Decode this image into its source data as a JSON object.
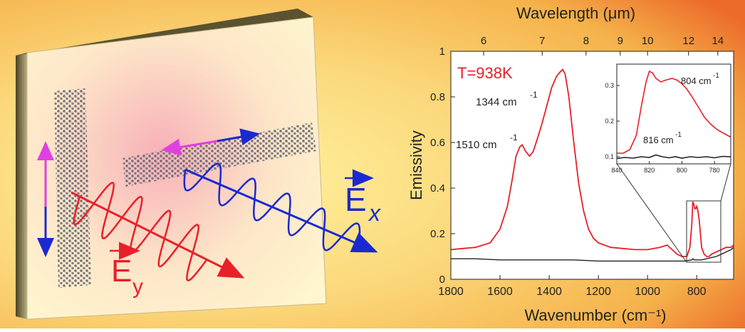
{
  "illustration": {
    "ex_label": "E",
    "ex_sub": "x",
    "ey_label": "E",
    "ey_sub": "y",
    "colors": {
      "red": "#e8202a",
      "blue": "#1a2ad0",
      "magenta": "#e040e0"
    }
  },
  "chart_data": [
    {
      "type": "line",
      "title": "",
      "annotation_temp": "T=938K",
      "xlabel": "Wavenumber (cm⁻¹)",
      "ylabel": "Emissivity",
      "top_xlabel": "Wavelength (μm)",
      "xlim": [
        1800,
        650
      ],
      "ylim": [
        0,
        1
      ],
      "x_ticks": [
        1800,
        1600,
        1400,
        1200,
        1000,
        800
      ],
      "y_ticks": [
        0,
        0.2,
        0.4,
        0.6,
        0.8,
        1
      ],
      "y_tick_labels": [
        "0",
        "0.2",
        "0.4",
        "0.6",
        "0.8",
        "1"
      ],
      "top_ticks": [
        6,
        7,
        8,
        9,
        10,
        12,
        14
      ],
      "peak_labels": [
        {
          "text": "1344 cm",
          "sup": "-1",
          "x": 1344
        },
        {
          "text": "1510 cm",
          "sup": "-1",
          "x": 1510
        }
      ],
      "series": [
        {
          "color": "#e8202a",
          "x": [
            1800,
            1700,
            1640,
            1600,
            1570,
            1550,
            1535,
            1520,
            1510,
            1495,
            1480,
            1465,
            1450,
            1430,
            1410,
            1390,
            1370,
            1355,
            1345,
            1335,
            1320,
            1300,
            1280,
            1260,
            1240,
            1220,
            1200,
            1150,
            1100,
            1050,
            1000,
            950,
            920,
            900,
            880,
            860,
            840,
            828,
            820,
            816,
            812,
            808,
            804,
            800,
            795,
            790,
            785,
            780,
            770,
            760,
            750,
            740,
            720,
            700,
            680,
            660,
            650
          ],
          "y": [
            0.13,
            0.14,
            0.16,
            0.22,
            0.32,
            0.44,
            0.54,
            0.58,
            0.59,
            0.56,
            0.54,
            0.56,
            0.61,
            0.68,
            0.76,
            0.84,
            0.89,
            0.91,
            0.92,
            0.9,
            0.8,
            0.6,
            0.42,
            0.3,
            0.22,
            0.18,
            0.16,
            0.14,
            0.135,
            0.13,
            0.13,
            0.14,
            0.15,
            0.13,
            0.11,
            0.1,
            0.1,
            0.14,
            0.24,
            0.34,
            0.33,
            0.31,
            0.31,
            0.32,
            0.3,
            0.26,
            0.2,
            0.14,
            0.11,
            0.1,
            0.1,
            0.11,
            0.12,
            0.13,
            0.14,
            0.14,
            0.15
          ]
        },
        {
          "color": "#222222",
          "x": [
            1800,
            1700,
            1600,
            1500,
            1400,
            1300,
            1200,
            1100,
            1000,
            900,
            850,
            820,
            816,
            810,
            800,
            780,
            760,
            740,
            720,
            700,
            680,
            660,
            650
          ],
          "y": [
            0.09,
            0.09,
            0.085,
            0.085,
            0.085,
            0.085,
            0.08,
            0.08,
            0.08,
            0.08,
            0.08,
            0.085,
            0.09,
            0.085,
            0.085,
            0.085,
            0.09,
            0.095,
            0.1,
            0.11,
            0.12,
            0.13,
            0.14
          ]
        }
      ]
    },
    {
      "type": "line",
      "title": "",
      "xlim": [
        840,
        770
      ],
      "ylim": [
        0.08,
        0.36
      ],
      "x_ticks": [
        840,
        820,
        800,
        780
      ],
      "y_ticks": [
        0.1,
        0.2,
        0.3
      ],
      "y_tick_labels": [
        "0.1",
        "0.2",
        "0.3"
      ],
      "annotations": [
        {
          "text": "804 cm",
          "sup": "-1"
        },
        {
          "text": "816 cm",
          "sup": "-1"
        }
      ],
      "series": [
        {
          "color": "#e8202a",
          "x": [
            840,
            836,
            832,
            828,
            825,
            822,
            820,
            818,
            816,
            813,
            810,
            806,
            803,
            800,
            797,
            794,
            790,
            786,
            782,
            778,
            774,
            770
          ],
          "y": [
            0.11,
            0.11,
            0.12,
            0.16,
            0.24,
            0.31,
            0.34,
            0.335,
            0.32,
            0.31,
            0.315,
            0.32,
            0.315,
            0.305,
            0.29,
            0.27,
            0.24,
            0.21,
            0.19,
            0.175,
            0.165,
            0.155
          ]
        },
        {
          "color": "#222222",
          "x": [
            840,
            835,
            830,
            825,
            820,
            816,
            812,
            808,
            804,
            800,
            795,
            790,
            785,
            780,
            775,
            770
          ],
          "y": [
            0.095,
            0.098,
            0.096,
            0.1,
            0.098,
            0.105,
            0.1,
            0.097,
            0.1,
            0.096,
            0.1,
            0.098,
            0.1,
            0.097,
            0.101,
            0.1
          ]
        }
      ]
    }
  ]
}
